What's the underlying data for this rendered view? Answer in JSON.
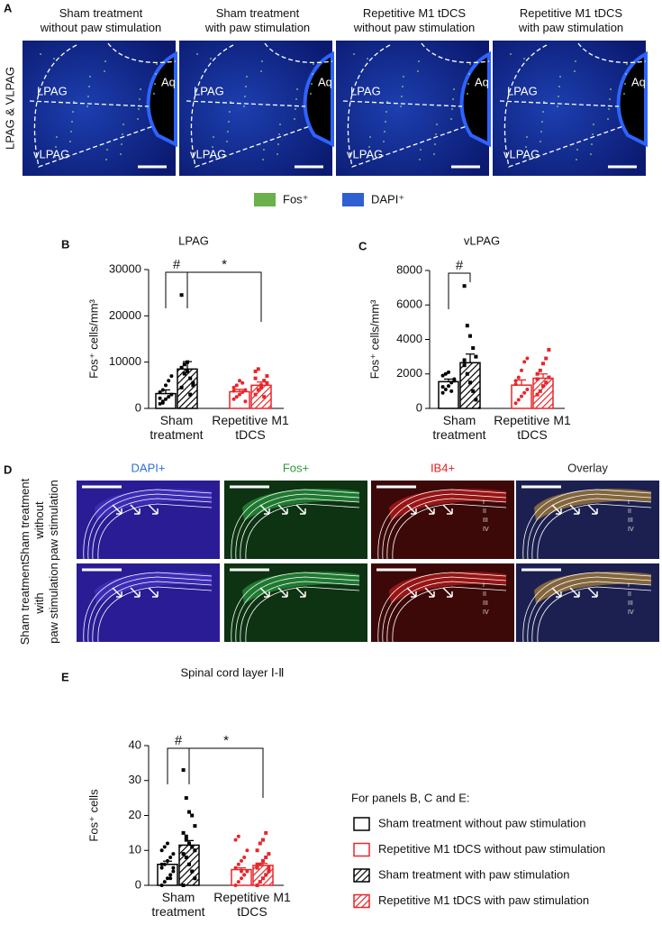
{
  "figure": {
    "panel_labels": [
      "A",
      "B",
      "C",
      "D",
      "E"
    ],
    "panel_a": {
      "side_label": "LPAG & VLPAG",
      "titles": [
        "Sham treatment\nwithout paw stimulation",
        "Sham treatment\nwith paw stimulation",
        "Repetitive M1 tDCS\nwithout paw stimulation",
        "Repetitive M1 tDCS\nwith paw stimulation"
      ],
      "region_labels": [
        "LPAG",
        "vLPAG",
        "Aq"
      ],
      "stains": [
        {
          "name": "Fos⁺",
          "color": "#6ab04c"
        },
        {
          "name": "DAPI⁺",
          "color": "#2f5fd0"
        }
      ]
    },
    "panel_d": {
      "columns": [
        {
          "name": "DAPI+",
          "color": "#2f6fd6"
        },
        {
          "name": "Fos+",
          "color": "#2a9a3a"
        },
        {
          "name": "IB4+",
          "color": "#e02020"
        },
        {
          "name": "Overlay",
          "color": "#222222"
        }
      ],
      "rows": [
        "Sham treatment\nwithout\npaw stimulation",
        "Sham treatment\nwith\npaw stimulation"
      ],
      "layers": [
        "I",
        "II",
        "III",
        "IV"
      ]
    },
    "legend": {
      "title": "For panels B, C and E:",
      "entries": [
        "Sham treatment without paw stimulation",
        "Repetitive M1 tDCS without paw stimulation",
        "Sham treatment with paw stimulation",
        "Repetitive M1 tDCS with paw stimulation"
      ]
    }
  },
  "chart_data": [
    {
      "type": "bar",
      "title": "LPAG",
      "y_label": "Fos⁺ cells/mm³",
      "categories": [
        "Sham\ntreatment",
        "Repetitive M1\ntDCS"
      ],
      "ylim": [
        0,
        30000
      ],
      "yticks": [
        0,
        10000,
        20000,
        30000
      ],
      "annotations": [
        "#",
        "*"
      ],
      "series": [
        {
          "color": "#000000",
          "hatch": false,
          "values": [
            3200,
            null
          ],
          "errors": [
            800,
            null
          ],
          "points": [
            [
              1000,
              1500,
              2000,
              2500,
              3000,
              3500,
              4000,
              5000,
              6000,
              7000,
              2200,
              1200
            ],
            null
          ]
        },
        {
          "color": "#e8262a",
          "hatch": false,
          "values": [
            null,
            3600
          ],
          "errors": [
            null,
            500
          ],
          "points": [
            null,
            [
              2000,
              2500,
              3000,
              3500,
              4000,
              4500,
              5000,
              6000,
              5500,
              1500,
              3800
            ]
          ]
        },
        {
          "color": "#000000",
          "hatch": true,
          "values": [
            8500,
            null
          ],
          "errors": [
            1600,
            null
          ],
          "points": [
            [
              24500,
              9500,
              8000,
              6500,
              5500,
              4500,
              7500,
              10000,
              3000,
              5000,
              8800
            ],
            null
          ]
        },
        {
          "color": "#e8262a",
          "hatch": true,
          "values": [
            null,
            5000
          ],
          "errors": [
            null,
            700
          ],
          "points": [
            null,
            [
              3000,
              4000,
              5000,
              6000,
              7000,
              8000,
              8500,
              4500,
              2500,
              5500,
              6500
            ]
          ]
        }
      ]
    },
    {
      "type": "bar",
      "title": "vLPAG",
      "y_label": "Fos⁺ cells/mm³",
      "categories": [
        "Sham\ntreatment",
        "Repetitive M1\ntDCS"
      ],
      "ylim": [
        0,
        8000
      ],
      "yticks": [
        0,
        2000,
        4000,
        6000,
        8000
      ],
      "annotations": [
        "#"
      ],
      "series": [
        {
          "color": "#000000",
          "hatch": false,
          "values": [
            1550,
            null
          ],
          "errors": [
            150,
            null
          ],
          "points": [
            [
              900,
              1100,
              1300,
              1500,
              1700,
              1900,
              2000,
              2100,
              1000,
              1600,
              1250
            ],
            null
          ]
        },
        {
          "color": "#e8262a",
          "hatch": false,
          "values": [
            null,
            1350
          ],
          "errors": [
            null,
            300
          ],
          "points": [
            null,
            [
              300,
              500,
              700,
              900,
              1100,
              1400,
              1800,
              2200,
              2700,
              2900,
              1600
            ]
          ]
        },
        {
          "color": "#000000",
          "hatch": true,
          "values": [
            2650,
            null
          ],
          "errors": [
            500,
            null
          ],
          "points": [
            [
              7100,
              4800,
              4200,
              3500,
              3000,
              2500,
              2000,
              1500,
              1000,
              500,
              2800
            ],
            null
          ]
        },
        {
          "color": "#e8262a",
          "hatch": true,
          "values": [
            null,
            1750
          ],
          "errors": [
            null,
            250
          ],
          "points": [
            null,
            [
              800,
              1000,
              1300,
              1500,
              1800,
              2000,
              2200,
              2600,
              2900,
              3400,
              1700
            ]
          ]
        }
      ]
    },
    {
      "type": "bar",
      "title": "Spinal cord layer Ⅰ-Ⅱ",
      "y_label": "Fos⁺ cells",
      "categories": [
        "Sham\ntreatment",
        "Repetitive M1\ntDCS"
      ],
      "ylim": [
        0,
        40
      ],
      "yticks": [
        0,
        10,
        20,
        30,
        40
      ],
      "annotations": [
        "#",
        "*"
      ],
      "series": [
        {
          "color": "#000000",
          "hatch": false,
          "values": [
            6,
            null
          ],
          "errors": [
            0.9,
            null
          ],
          "points": [
            [
              0,
              1,
              2,
              3,
              4,
              5,
              6,
              7,
              8,
              9,
              10,
              11,
              12,
              2,
              5,
              6
            ],
            null
          ]
        },
        {
          "color": "#e8262a",
          "hatch": false,
          "values": [
            null,
            4.5
          ],
          "errors": [
            null,
            0.5
          ],
          "points": [
            null,
            [
              0,
              1,
              2,
              3,
              4,
              5,
              6,
              7,
              8,
              10,
              13,
              14,
              4,
              3
            ]
          ]
        },
        {
          "color": "#000000",
          "hatch": true,
          "values": [
            11.5,
            null
          ],
          "errors": [
            1.3,
            null
          ],
          "points": [
            [
              33,
              25,
              21,
              20,
              17,
              15,
              14,
              12,
              11,
              10,
              9,
              8,
              6,
              4,
              2,
              0,
              13
            ],
            null
          ]
        },
        {
          "color": "#e8262a",
          "hatch": true,
          "values": [
            null,
            5.7
          ],
          "errors": [
            null,
            0.6
          ],
          "points": [
            null,
            [
              0,
              1,
              2,
              3,
              4,
              5,
              6,
              7,
              8,
              9,
              10,
              12,
              13,
              15,
              5,
              6
            ]
          ]
        }
      ]
    }
  ]
}
